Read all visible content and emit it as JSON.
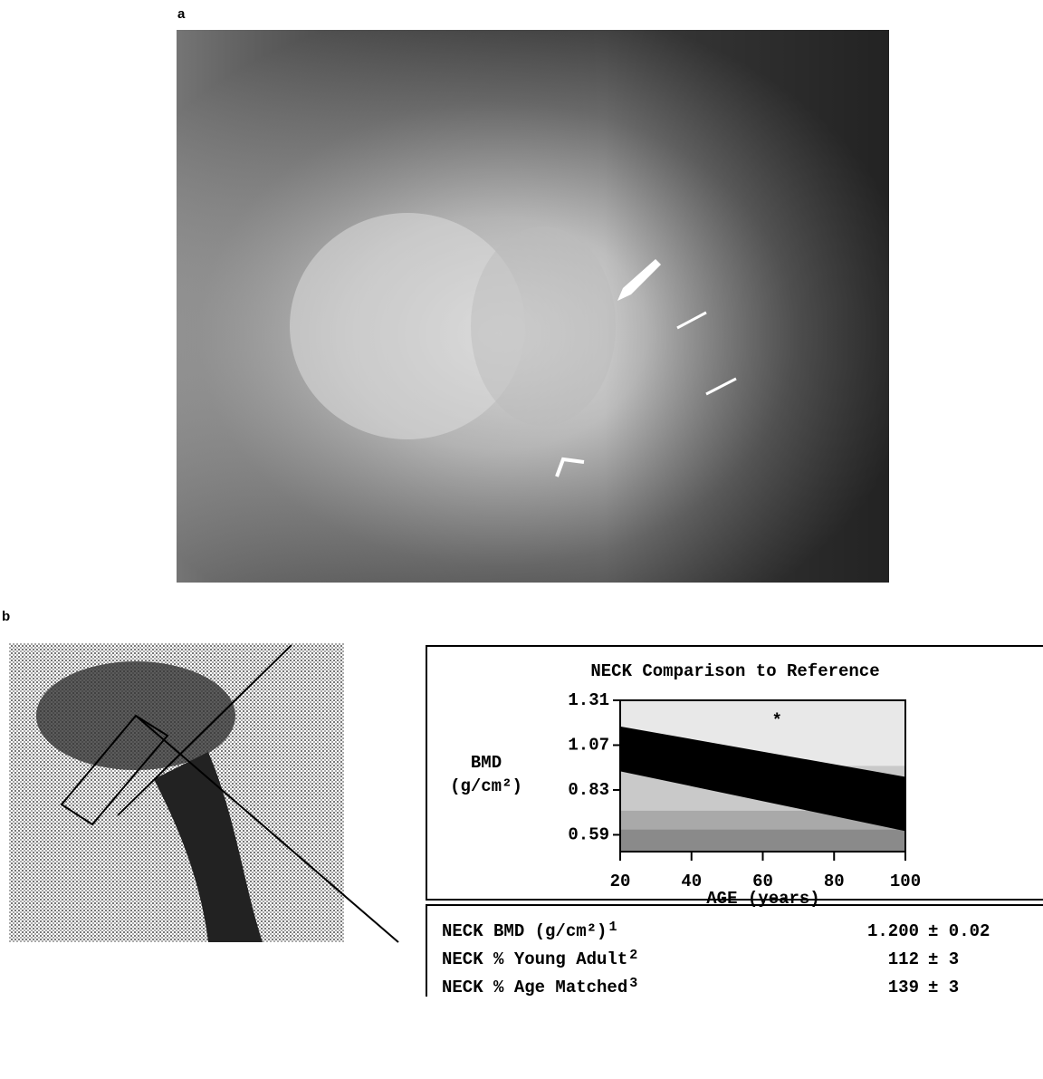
{
  "panel_labels": [
    "a",
    "b"
  ],
  "chart_data": {
    "type": "band",
    "title": "NECK Comparison to Reference",
    "ylabel": [
      "BMD",
      "(g/cm²)"
    ],
    "xlabel": "AGE (years)",
    "xlim": [
      20,
      100
    ],
    "xticks": [
      20,
      40,
      60,
      80,
      100
    ],
    "ylim": [
      0.5,
      1.31
    ],
    "yticks": [
      0.59,
      0.83,
      1.07,
      1.31
    ],
    "zones": [
      {
        "from": 0.5,
        "to": 0.62,
        "color": "#8a8a8a"
      },
      {
        "from": 0.62,
        "to": 0.72,
        "color": "#a9a9a9"
      },
      {
        "from": 0.72,
        "to": 0.96,
        "color": "#c9c9c9"
      },
      {
        "from": 0.96,
        "to": 1.31,
        "color": "#e8e8e8"
      }
    ],
    "x": [
      20,
      100
    ],
    "upper": [
      1.17,
      0.9
    ],
    "lower": [
      0.93,
      0.61
    ],
    "color": "#000000",
    "point": {
      "x": 64,
      "y": 1.2,
      "label": "*"
    }
  },
  "table": {
    "rows": [
      [
        "NECK BMD (g/cm²)",
        "1",
        "1.200",
        "± 0.02"
      ],
      [
        "NECK % Young Adult",
        "2",
        "112",
        "± 3"
      ],
      [
        "NECK % Age Matched",
        "3",
        "139",
        "± 3"
      ]
    ]
  }
}
